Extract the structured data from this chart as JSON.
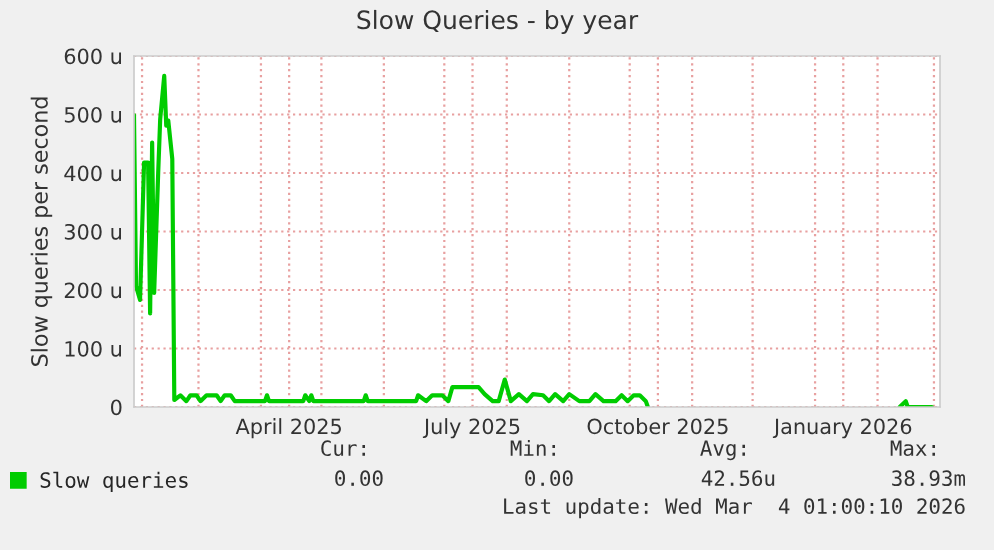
{
  "chart_data": {
    "type": "line",
    "title": "Slow Queries - by year",
    "ylabel": "Slow queries per second",
    "x": [
      "2025-01-28",
      "2025-01-29",
      "2025-01-31",
      "2025-02-02",
      "2025-02-04",
      "2025-02-05",
      "2025-02-06",
      "2025-02-07",
      "2025-02-09",
      "2025-02-10",
      "2025-02-12",
      "2025-02-13",
      "2025-02-14",
      "2025-02-16",
      "2025-02-17",
      "2025-02-20",
      "2025-02-23",
      "2025-02-25",
      "2025-02-28",
      "2025-03-02",
      "2025-03-05",
      "2025-03-10",
      "2025-03-12",
      "2025-03-14",
      "2025-03-17",
      "2025-03-19",
      "2025-04-03",
      "2025-04-04",
      "2025-04-05",
      "2025-04-22",
      "2025-04-23",
      "2025-04-25",
      "2025-04-26",
      "2025-04-27",
      "2025-05-22",
      "2025-05-23",
      "2025-05-24",
      "2025-06-17",
      "2025-06-18",
      "2025-06-22",
      "2025-06-25",
      "2025-06-30",
      "2025-07-03",
      "2025-07-05",
      "2025-07-18",
      "2025-07-21",
      "2025-07-25",
      "2025-07-28",
      "2025-07-31",
      "2025-08-03",
      "2025-08-07",
      "2025-08-11",
      "2025-08-14",
      "2025-08-19",
      "2025-08-22",
      "2025-08-25",
      "2025-08-29",
      "2025-09-01",
      "2025-09-06",
      "2025-09-11",
      "2025-09-14",
      "2025-09-18",
      "2025-09-24",
      "2025-09-27",
      "2025-09-30",
      "2025-10-03",
      "2025-10-06",
      "2025-10-09",
      "2025-10-10",
      "2025-10-11",
      "2026-02-12",
      "2026-02-15",
      "2026-02-16",
      "2026-02-28"
    ],
    "series": [
      {
        "name": "Slow queries",
        "color": "#00cc00",
        "values": [
          499,
          207,
          183,
          418,
          418,
          160,
          452,
          195,
          400,
          492,
          566,
          481,
          490,
          424,
          12,
          20,
          10,
          20,
          20,
          10,
          20,
          20,
          10,
          20,
          20,
          10,
          10,
          20,
          10,
          10,
          20,
          10,
          20,
          10,
          10,
          20,
          10,
          10,
          20,
          10,
          20,
          20,
          10,
          34,
          34,
          22,
          10,
          10,
          47,
          10,
          22,
          10,
          22,
          20,
          10,
          22,
          10,
          22,
          10,
          10,
          22,
          10,
          10,
          20,
          10,
          20,
          20,
          10,
          0,
          null,
          0,
          10,
          0,
          0
        ]
      }
    ],
    "xlim": [
      "2025-01-28",
      "2026-03-04"
    ],
    "xticks": [
      {
        "value": "2025-02-01",
        "label": null
      },
      {
        "value": "2025-03-01",
        "label": null
      },
      {
        "value": "2025-04-01",
        "label": null
      },
      {
        "value": "2025-04-15",
        "label": "April 2025"
      },
      {
        "value": "2025-05-01",
        "label": null
      },
      {
        "value": "2025-06-01",
        "label": null
      },
      {
        "value": "2025-07-01",
        "label": null
      },
      {
        "value": "2025-07-15",
        "label": "July 2025"
      },
      {
        "value": "2025-08-01",
        "label": null
      },
      {
        "value": "2025-09-01",
        "label": null
      },
      {
        "value": "2025-10-01",
        "label": null
      },
      {
        "value": "2025-10-15",
        "label": "October 2025"
      },
      {
        "value": "2025-11-01",
        "label": null
      },
      {
        "value": "2025-12-01",
        "label": null
      },
      {
        "value": "2026-01-01",
        "label": null
      },
      {
        "value": "2026-01-15",
        "label": "January 2026"
      },
      {
        "value": "2026-02-01",
        "label": null
      },
      {
        "value": "2026-03-01",
        "label": null
      }
    ],
    "ylim": [
      0,
      600
    ],
    "yticks": [
      0,
      {
        "value": 100,
        "label": "100 u"
      },
      {
        "value": 200,
        "label": "200 u"
      },
      {
        "value": 300,
        "label": "300 u"
      },
      {
        "value": 400,
        "label": "400 u"
      },
      {
        "value": 500,
        "label": "500 u"
      },
      {
        "value": 600,
        "label": "600 u"
      }
    ],
    "grid": true,
    "legend": "bottom",
    "annotations": [
      "Cur:",
      "Min:",
      "Avg:",
      "Max:",
      "0.00",
      "0.00",
      "42.56u",
      "38.93m",
      "Last update: Wed Mar  4 01:00:10 2026"
    ]
  }
}
